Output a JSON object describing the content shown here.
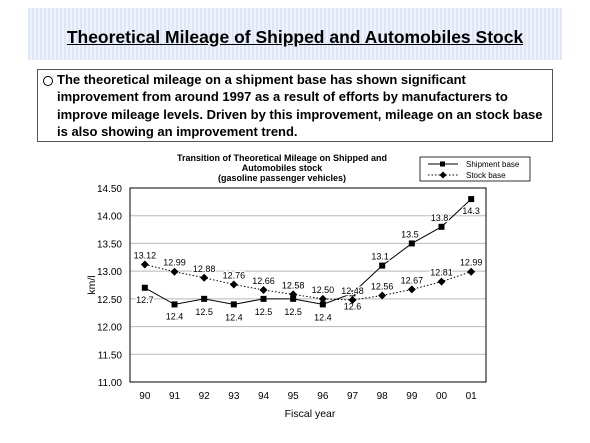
{
  "header": {
    "title": "Theoretical Mileage of Shipped and Automobiles Stock"
  },
  "summary": {
    "text": "The theoretical mileage on a shipment base has shown significant improvement from around 1997 as a result of efforts by manufacturers to improve mileage levels.  Driven by this improvement, mileage on an stock base is also showing an improvement trend."
  },
  "chart_data": {
    "type": "line",
    "title_lines": [
      "Transition of Theoretical Mileage on Shipped and",
      "Automobiles stock",
      "(gasoline passenger vehicles)"
    ],
    "xlabel": "Fiscal year",
    "ylabel": "km/l",
    "categories": [
      "90",
      "91",
      "92",
      "93",
      "94",
      "95",
      "96",
      "97",
      "98",
      "99",
      "00",
      "01"
    ],
    "ylim": [
      11.0,
      14.5
    ],
    "yticks": [
      "11.00",
      "11.50",
      "12.00",
      "12.50",
      "13.00",
      "13.50",
      "14.00",
      "14.50"
    ],
    "grid": true,
    "legend_position": "top-right",
    "series": [
      {
        "name": "Shipment base",
        "marker": "square",
        "line": "solid",
        "color": "#000000",
        "values": [
          12.7,
          12.4,
          12.5,
          12.4,
          12.5,
          12.5,
          12.4,
          12.6,
          13.1,
          13.5,
          13.8,
          14.3
        ],
        "labels": [
          "12.7",
          "12.4",
          "12.5",
          "12.4",
          "12.5",
          "12.5",
          "12.4",
          "12.6",
          "13.1",
          "13.5",
          "13.8",
          "14.3"
        ]
      },
      {
        "name": "Stock base",
        "marker": "diamond",
        "line": "dotted",
        "color": "#000000",
        "values": [
          13.12,
          12.99,
          12.88,
          12.76,
          12.66,
          12.58,
          12.5,
          12.48,
          12.56,
          12.67,
          12.81,
          12.99
        ],
        "labels": [
          "13.12",
          "12.99",
          "12.88",
          "12.76",
          "12.66",
          "12.58",
          "12.50",
          "12.48",
          "12.56",
          "12.67",
          "12.81",
          "12.99"
        ]
      }
    ]
  }
}
